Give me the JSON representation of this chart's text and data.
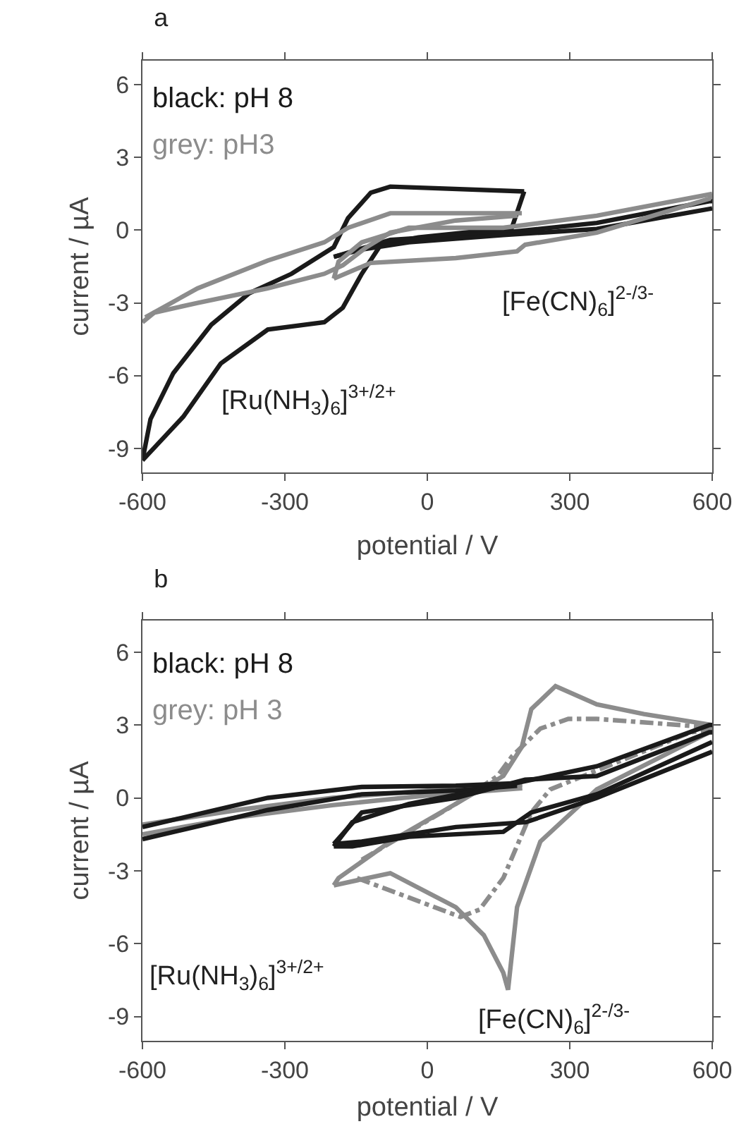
{
  "chart_data": [
    {
      "type": "line",
      "title": "a",
      "xlabel": "potential / V",
      "ylabel": "current / µA",
      "xlim": [
        -600,
        600
      ],
      "xticks": [
        -600,
        -300,
        0,
        300,
        600
      ],
      "ylim": [
        -10,
        7
      ],
      "yticks": [
        -9,
        -6,
        -3,
        0,
        3,
        6
      ],
      "grid": false,
      "annotations": [
        "black: pH 8",
        "grey: pH3",
        "[Ru(NH$_{3}$)$_{6}$]$^{3+/2+}$",
        "[Fe(CN)$_{6}$]$^{2-/3-}$"
      ],
      "series": [
        {
          "color": "#1a1a1a",
          "x": [
            -600,
            -583,
            -535,
            -455,
            -375,
            -286,
            -197,
            -167,
            -119,
            -78,
            204
          ],
          "values": [
            -9.5,
            -7.8,
            -5.9,
            -3.9,
            -2.6,
            -1.8,
            -0.7,
            0.5,
            1.55,
            1.8,
            1.6
          ]
        },
        {
          "color": "#1a1a1a",
          "x": [
            -600,
            -514,
            -435,
            -336,
            -217,
            -178,
            -138,
            -98,
            -19,
            178,
            204
          ],
          "values": [
            -9.5,
            -7.7,
            -5.5,
            -4.1,
            -3.8,
            -3.2,
            -1.8,
            -0.6,
            -0.3,
            0.1,
            1.6
          ]
        },
        {
          "color": "#1a1a1a",
          "x": [
            -197,
            -78,
            160,
            357,
            594,
            600
          ],
          "values": [
            -1.1,
            -0.4,
            -0.1,
            0.3,
            1.2,
            1.2
          ]
        },
        {
          "color": "#1a1a1a",
          "x": [
            -197,
            -138,
            -39,
            160,
            357,
            600
          ],
          "values": [
            -1.1,
            -0.8,
            -0.5,
            -0.2,
            0.05,
            0.9
          ]
        },
        {
          "color": "#8c8c8c",
          "x": [
            -594,
            -484,
            -336,
            -217,
            -167,
            -78,
            60,
            199
          ],
          "values": [
            -3.6,
            -2.4,
            -1.25,
            -0.5,
            0.1,
            0.7,
            0.7,
            0.7
          ]
        },
        {
          "color": "#8c8c8c",
          "x": [
            -600,
            -575,
            -484,
            -336,
            -217,
            -178,
            -128,
            -78,
            60,
            190
          ],
          "values": [
            -3.8,
            -3.4,
            -3.0,
            -2.4,
            -1.8,
            -1.45,
            -0.7,
            -0.1,
            0.4,
            0.6
          ]
        },
        {
          "color": "#8c8c8c",
          "x": [
            -197,
            -119,
            60,
            189,
            206,
            357,
            594,
            600
          ],
          "values": [
            -2.0,
            -1.35,
            -1.15,
            -0.87,
            -0.6,
            -0.1,
            1.3,
            1.5
          ]
        },
        {
          "color": "#8c8c8c",
          "x": [
            -197,
            -187,
            -138,
            -39,
            160,
            357,
            600
          ],
          "values": [
            -2.0,
            -1.3,
            -0.5,
            0.1,
            0.1,
            0.6,
            1.5
          ]
        }
      ]
    },
    {
      "type": "line",
      "title": "b",
      "xlabel": "potential / V",
      "ylabel": "current / µA",
      "xlim": [
        -600,
        600
      ],
      "xticks": [
        -600,
        -300,
        0,
        300,
        600
      ],
      "ylim": [
        -10,
        7.3
      ],
      "yticks": [
        -9,
        -6,
        -3,
        0,
        3,
        6
      ],
      "grid": false,
      "annotations": [
        "black: pH 8",
        "grey: pH 3",
        "[Ru(NH$_{3}$)$_{6}$]$^{3+/2+}$",
        "[Fe(CN)$_{6}$]$^{2-/3-}$"
      ],
      "series": [
        {
          "color": "#8c8c8c",
          "x": [
            -600,
            -400,
            -200,
            0,
            150,
            200
          ],
          "values": [
            -1.1,
            -0.5,
            0,
            0.3,
            0.5,
            0.55
          ]
        },
        {
          "color": "#8c8c8c",
          "x": [
            -600,
            -400,
            -200,
            0,
            200
          ],
          "values": [
            -1.5,
            -0.8,
            -0.3,
            0.1,
            0.4
          ]
        },
        {
          "color": "#8c8c8c",
          "x": [
            -197,
            -78,
            60,
            119,
            160,
            170,
            189,
            238,
            357,
            594,
            600
          ],
          "values": [
            -3.6,
            -3.1,
            -4.5,
            -5.65,
            -7.2,
            -7.9,
            -4.5,
            -1.8,
            0.35,
            2.7,
            3.0
          ]
        },
        {
          "color": "#8c8c8c",
          "x": [
            -197,
            -187,
            -78,
            60,
            160,
            199,
            219,
            270,
            357,
            456,
            600
          ],
          "values": [
            -3.6,
            -3.3,
            -1.8,
            -0.25,
            0.9,
            2.1,
            3.65,
            4.6,
            3.85,
            3.45,
            3.0
          ]
        },
        {
          "color": "#8c8c8c",
          "line_style": "dashed",
          "x": [
            -148,
            -39,
            70,
            110,
            160,
            219,
            259,
            555,
            594
          ],
          "values": [
            -3.3,
            -4.1,
            -4.9,
            -4.6,
            -3.3,
            -0.6,
            0.35,
            2.7,
            2.8
          ]
        },
        {
          "color": "#8c8c8c",
          "line_style": "dashed",
          "x": [
            -138,
            -39,
            60,
            148,
            178,
            238,
            297,
            357,
            600
          ],
          "values": [
            -2.55,
            -1.4,
            -0.25,
            0.9,
            1.7,
            2.85,
            3.25,
            3.25,
            2.9
          ]
        },
        {
          "color": "#1a1a1a",
          "x": [
            -600,
            -336,
            -138,
            60,
            189
          ],
          "values": [
            -1.2,
            0,
            0.45,
            0.5,
            0.6
          ]
        },
        {
          "color": "#1a1a1a",
          "x": [
            -600,
            -336,
            -138,
            60,
            189
          ],
          "values": [
            -1.7,
            -0.5,
            0.15,
            0.3,
            0.5
          ]
        },
        {
          "color": "#1a1a1a",
          "x": [
            -197,
            -158,
            -39,
            160,
            357,
            594,
            600
          ],
          "values": [
            -2.0,
            -1.0,
            -0.25,
            0.5,
            1.3,
            3.0,
            3.0
          ]
        },
        {
          "color": "#1a1a1a",
          "x": [
            -197,
            -158,
            -39,
            160,
            219,
            357,
            600
          ],
          "values": [
            -2.0,
            -2.0,
            -1.6,
            -1.4,
            -0.6,
            0.15,
            2.3
          ]
        },
        {
          "color": "#1a1a1a",
          "x": [
            -197,
            -138,
            60,
            206,
            357,
            594,
            600
          ],
          "values": [
            -1.9,
            -0.6,
            0,
            0.75,
            0.9,
            2.7,
            2.7
          ]
        },
        {
          "color": "#1a1a1a",
          "x": [
            -197,
            -138,
            60,
            208,
            357,
            600
          ],
          "values": [
            -1.9,
            -1.8,
            -1.2,
            -1.0,
            0,
            1.9
          ]
        }
      ]
    }
  ]
}
